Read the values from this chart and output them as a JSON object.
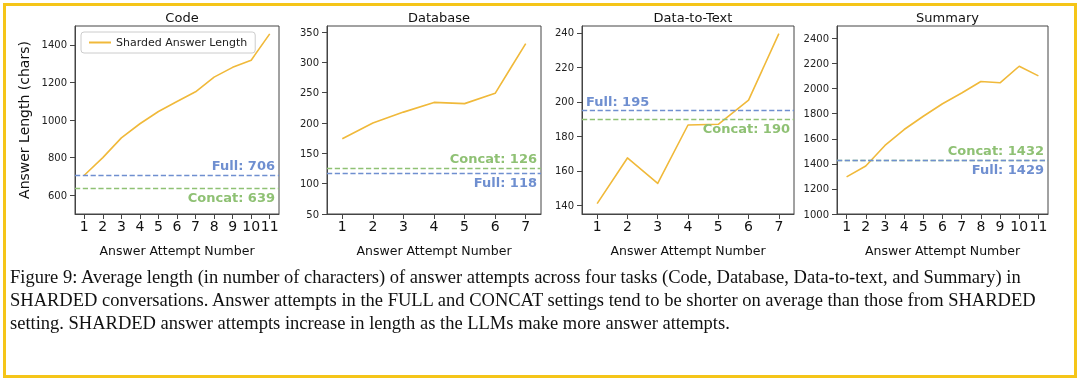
{
  "chart_data": [
    {
      "type": "line",
      "title": "Code",
      "xlabel": "Answer Attempt Number",
      "ylabel": "Answer Length (chars)",
      "categories": [
        "1",
        "2",
        "3",
        "4",
        "5",
        "6",
        "7",
        "8",
        "9",
        "10",
        "11"
      ],
      "series": [
        {
          "name": "Sharded Answer Length",
          "color": "#f0b93a",
          "values": [
            706,
            800,
            905,
            980,
            1045,
            1098,
            1150,
            1228,
            1280,
            1318,
            1458
          ]
        }
      ],
      "ylim": [
        500,
        1500
      ],
      "yticks": [
        600,
        800,
        1000,
        1200,
        1400
      ],
      "grid": false,
      "legend": "top left",
      "marker": "none",
      "line_style": "solid",
      "ref_lines": [
        {
          "axis": "y",
          "value": 706,
          "label": "Full: 706",
          "color": "#6f8fd0",
          "line_style": "dashed"
        },
        {
          "axis": "y",
          "value": 639,
          "label": "Concat: 639",
          "color": "#8fc174",
          "line_style": "dashed"
        }
      ]
    },
    {
      "type": "line",
      "title": "Database",
      "xlabel": "Answer Attempt Number",
      "categories": [
        "1",
        "2",
        "3",
        "4",
        "5",
        "6",
        "7"
      ],
      "series": [
        {
          "color": "#f0b93a",
          "values": [
            174,
            200,
            218,
            234,
            232,
            249,
            331
          ]
        }
      ],
      "ylim": [
        50,
        360
      ],
      "yticks": [
        50,
        100,
        150,
        200,
        250,
        300,
        350
      ],
      "grid": false,
      "marker": "none",
      "line_style": "solid",
      "ref_lines": [
        {
          "axis": "y",
          "value": 126,
          "label": "Concat: 126",
          "color": "#8fc174",
          "line_style": "dashed"
        },
        {
          "axis": "y",
          "value": 118,
          "label": "Full: 118",
          "color": "#6f8fd0",
          "line_style": "dashed"
        }
      ]
    },
    {
      "type": "line",
      "title": "Data-to-Text",
      "xlabel": "Answer Attempt Number",
      "categories": [
        "1",
        "2",
        "3",
        "4",
        "5",
        "6",
        "7"
      ],
      "series": [
        {
          "color": "#f0b93a",
          "values": [
            141,
            167.5,
            152.7,
            186.6,
            187,
            201,
            239.6
          ]
        }
      ],
      "ylim": [
        135,
        244
      ],
      "yticks": [
        140,
        160,
        180,
        200,
        220,
        240
      ],
      "grid": false,
      "marker": "none",
      "line_style": "solid",
      "ref_lines": [
        {
          "axis": "y",
          "value": 195,
          "label": "Full: 195",
          "color": "#6f8fd0",
          "line_style": "dashed"
        },
        {
          "axis": "y",
          "value": 190,
          "label": "Concat: 190",
          "color": "#8fc174",
          "line_style": "dashed"
        }
      ]
    },
    {
      "type": "line",
      "title": "Summary",
      "xlabel": "Answer Attempt Number",
      "categories": [
        "1",
        "2",
        "3",
        "4",
        "5",
        "6",
        "7",
        "8",
        "9",
        "10",
        "11"
      ],
      "series": [
        {
          "color": "#f0b93a",
          "values": [
            1296,
            1383,
            1547,
            1674,
            1780,
            1880,
            1965,
            2057,
            2047,
            2179,
            2102
          ]
        }
      ],
      "ylim": [
        1000,
        2500
      ],
      "yticks": [
        1000,
        1200,
        1400,
        1600,
        1800,
        2000,
        2200,
        2400
      ],
      "grid": false,
      "marker": "none",
      "line_style": "solid",
      "ref_lines": [
        {
          "axis": "y",
          "value": 1432,
          "label": "Concat: 1432",
          "color": "#8fc174",
          "line_style": "dashed"
        },
        {
          "axis": "y",
          "value": 1429,
          "label": "Full: 1429",
          "color": "#6f8fd0",
          "line_style": "dashed"
        }
      ]
    },
    {
      "type": "other",
      "annotations": [
        "Figure 9: Average length (in number of characters) of answer attempts across four tasks (Code, Database, Data-to-text, and Summary) in SHARDED conversations. Answer attempts in the FULL and CONCAT settings tend to be shorter on average than those from SHARDED setting. SHARDED answer attempts increase in length as the LLMs make more answer attempts."
      ]
    }
  ]
}
